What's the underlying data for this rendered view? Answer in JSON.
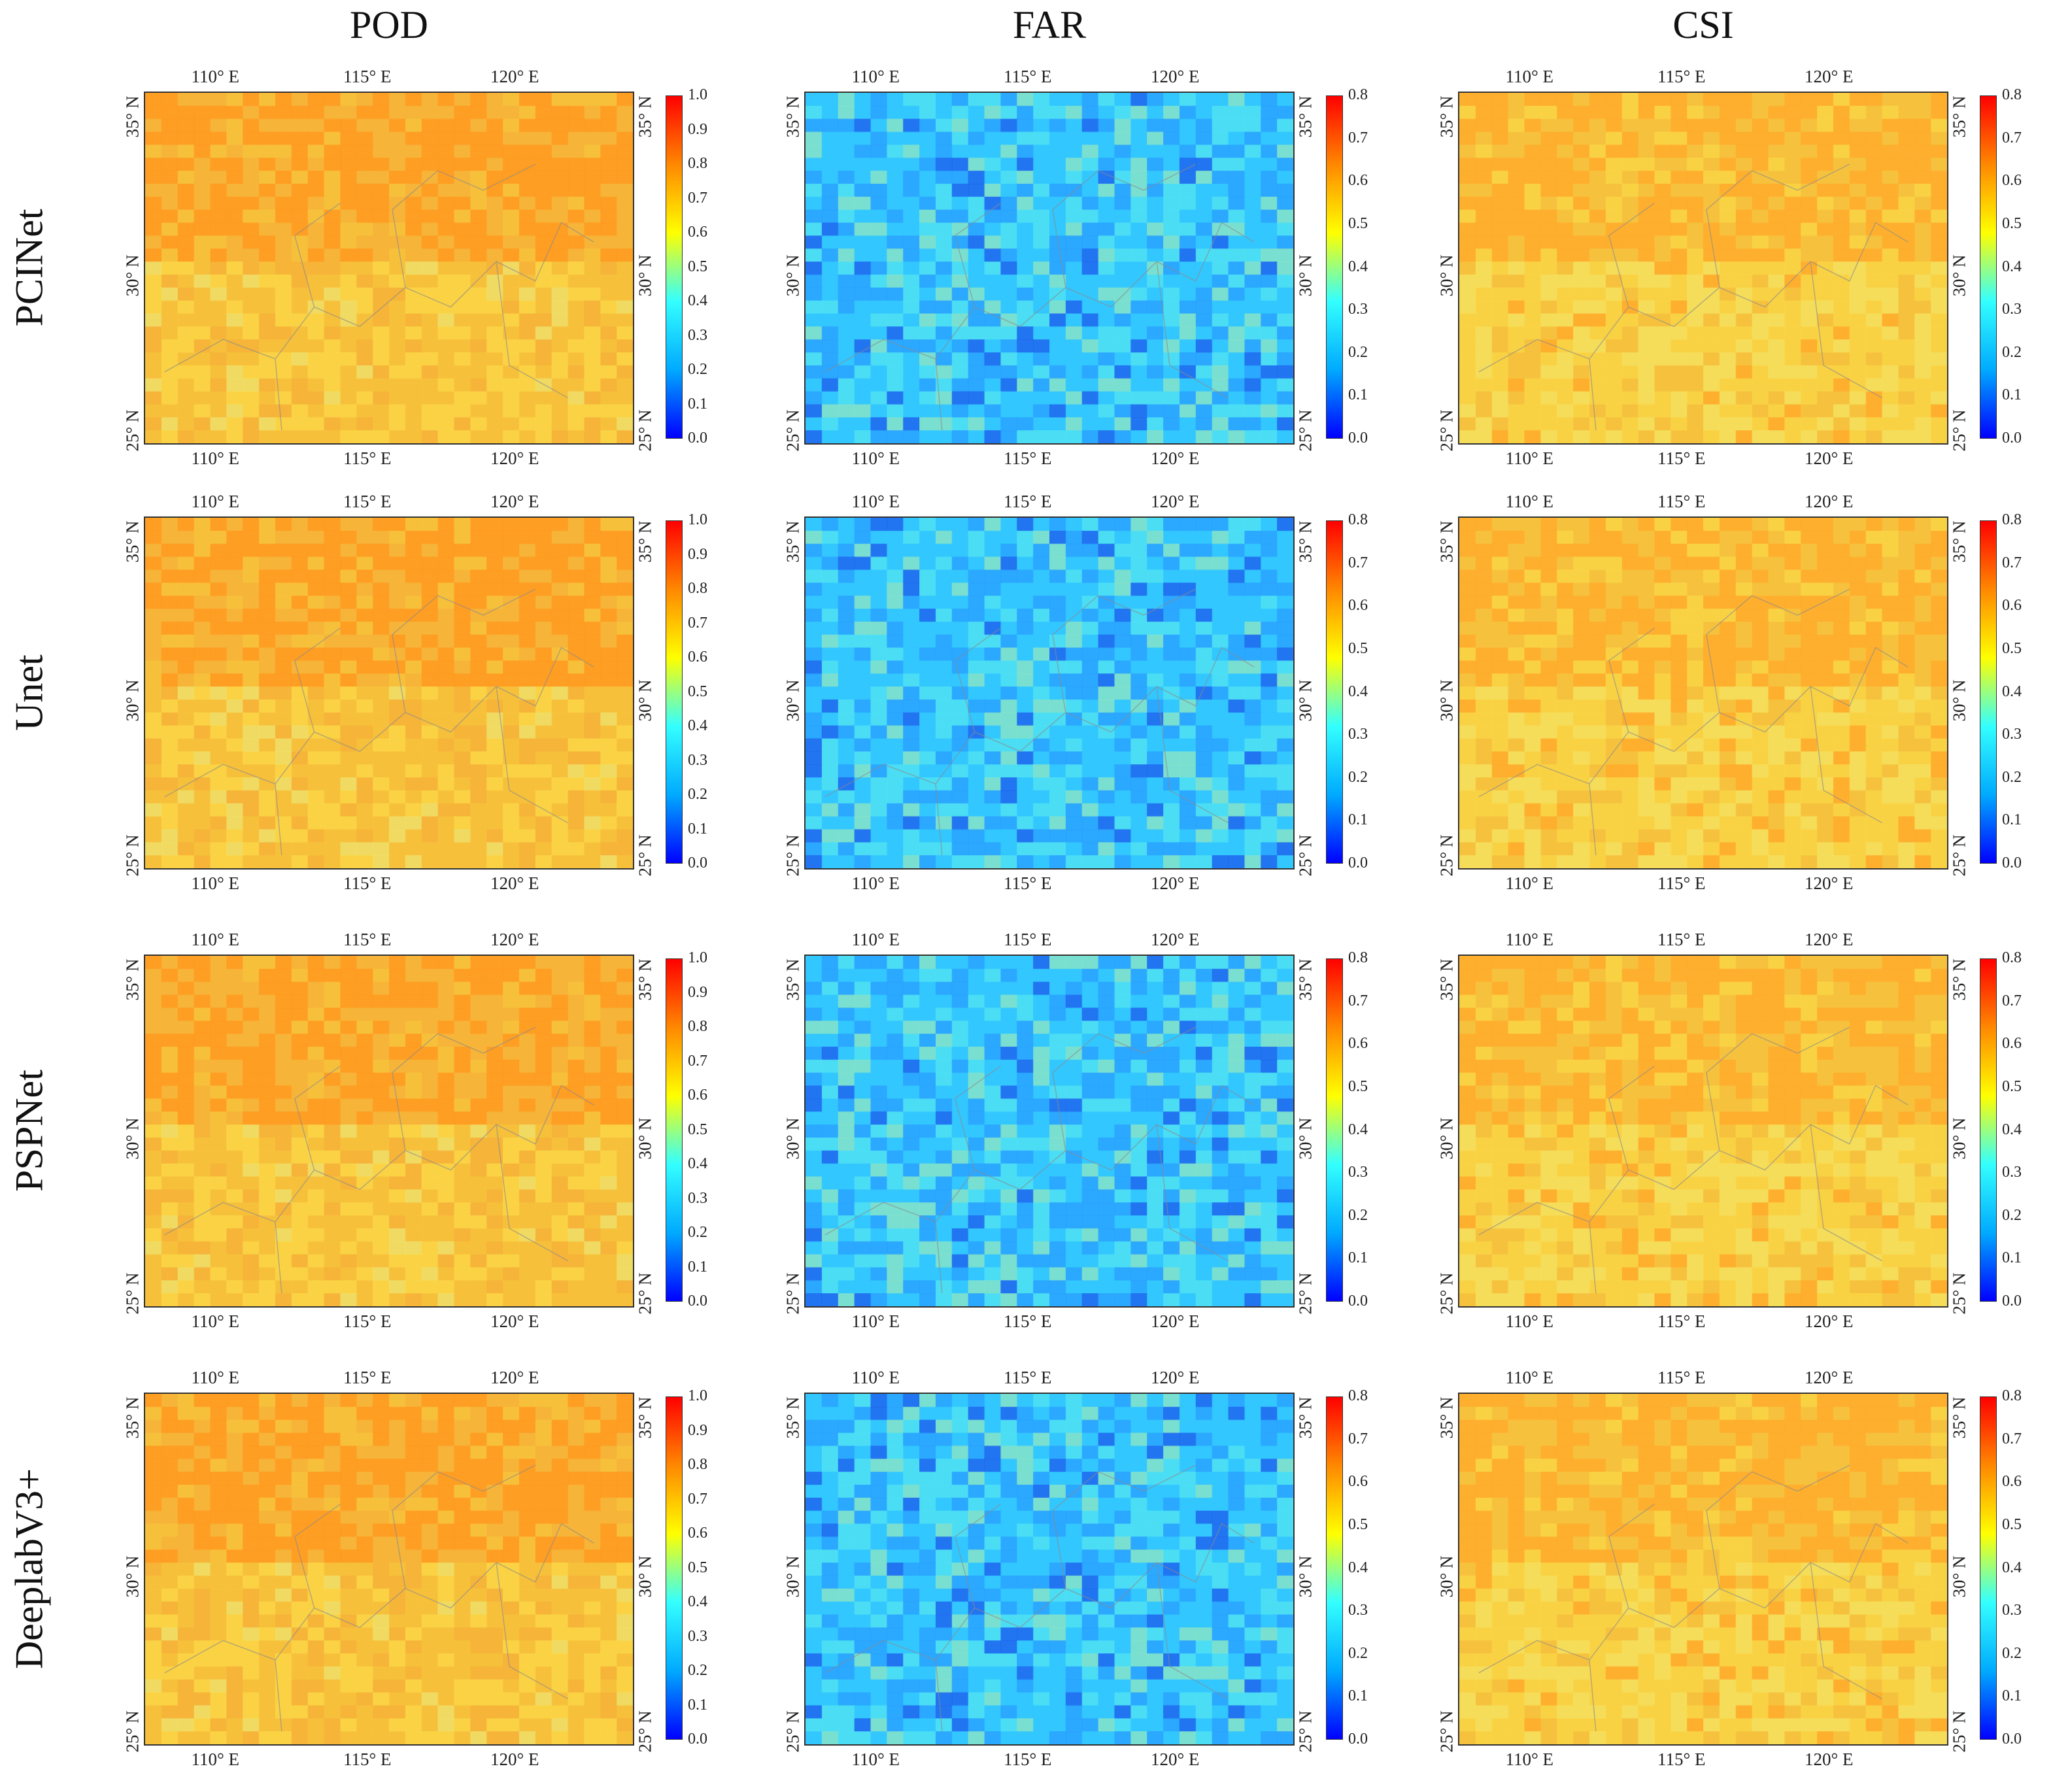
{
  "columns": [
    {
      "key": "POD",
      "title": "POD",
      "cbar_ticks": [
        "1.0",
        "0.9",
        "0.8",
        "0.7",
        "0.6",
        "0.5",
        "0.4",
        "0.3",
        "0.2",
        "0.1",
        "0.0"
      ]
    },
    {
      "key": "FAR",
      "title": "FAR",
      "cbar_ticks": [
        "0.8",
        "0.7",
        "0.6",
        "0.5",
        "0.4",
        "0.3",
        "0.2",
        "0.1",
        "0.0"
      ]
    },
    {
      "key": "CSI",
      "title": "CSI",
      "cbar_ticks": [
        "0.8",
        "0.7",
        "0.6",
        "0.5",
        "0.4",
        "0.3",
        "0.2",
        "0.1",
        "0.0"
      ]
    }
  ],
  "rows": [
    {
      "label": "PCINet"
    },
    {
      "label": "Unet"
    },
    {
      "label": "PSPNet"
    },
    {
      "label": "DeeplabV3+"
    }
  ],
  "lon_labels": [
    "110° E",
    "115° E",
    "120° E"
  ],
  "lat_labels": [
    "35° N",
    "30° N",
    "25° N"
  ],
  "colormap": [
    "#0000ff",
    "#00aaff",
    "#33ffff",
    "#ffff00",
    "#ff8800",
    "#ff0000"
  ],
  "map_fields": {
    "POD": [
      "#f6b43a",
      "#f7c23c",
      "#fad746",
      "#efe06a",
      "#ff9a20"
    ],
    "FAR": [
      "#33c7ff",
      "#2aa2ff",
      "#4fe0f2",
      "#86e3c8",
      "#2066ee"
    ],
    "CSI": [
      "#f6c23e",
      "#f9d545",
      "#f4e15e",
      "#ffab2c",
      "#ffc838"
    ]
  }
}
